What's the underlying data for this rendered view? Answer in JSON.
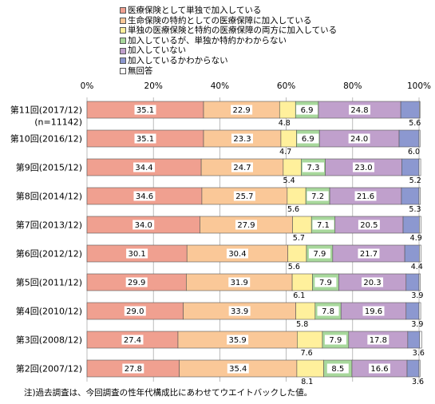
{
  "legend": {
    "items": [
      {
        "label": "医療保険として単独で加入している",
        "color": "#F0A090"
      },
      {
        "label": "生命保険の特約としての医療保障に加入している",
        "color": "#FAC898"
      },
      {
        "label": "単独の医療保険と特約の医療保障の両方に加入している",
        "color": "#FFF09C"
      },
      {
        "label": "加入しているが、単独か特約かわからない",
        "color": "#A8D89C"
      },
      {
        "label": "加入していない",
        "color": "#C0A0CC"
      },
      {
        "label": "加入しているかわからない",
        "color": "#8C98D0"
      },
      {
        "label": "無回答",
        "color": "#FFFFFF"
      }
    ]
  },
  "footnote": "注)過去調査は、今回調査の性年代構成比にあわせてウエイトバックした値。",
  "chart_data": {
    "type": "bar",
    "orientation": "horizontal",
    "stacked": true,
    "xlim": [
      0,
      100
    ],
    "x_ticks": [
      "0%",
      "20%",
      "40%",
      "60%",
      "80%",
      "100%"
    ],
    "categories": [
      "第11回(2017/12)",
      "第10回(2016/12)",
      "第9回(2015/12)",
      "第8回(2014/12)",
      "第7回(2013/12)",
      "第6回(2012/12)",
      "第5回(2011/12)",
      "第4回(2010/12)",
      "第3回(2008/12)",
      "第2回(2007/12)"
    ],
    "category_sublabels": [
      "(n=11142)",
      "",
      "",
      "",
      "",
      "",
      "",
      "",
      "",
      ""
    ],
    "series": [
      {
        "name": "医療保険として単独で加入している",
        "color": "#F0A090",
        "values": [
          35.1,
          35.1,
          34.4,
          34.6,
          34.0,
          30.1,
          29.9,
          29.0,
          27.4,
          27.8
        ],
        "labels": [
          "35.1",
          "35.1",
          "34.4",
          "34.6",
          "34.0",
          "30.1",
          "29.9",
          "29.0",
          "27.4",
          "27.8"
        ]
      },
      {
        "name": "生命保険の特約としての医療保障に加入している",
        "color": "#FAC898",
        "values": [
          22.9,
          23.3,
          24.7,
          25.7,
          27.9,
          30.4,
          31.9,
          33.9,
          35.9,
          35.4
        ],
        "labels": [
          "22.9",
          "23.3",
          "24.7",
          "25.7",
          "27.9",
          "30.4",
          "31.9",
          "33.9",
          "35.9",
          "35.4"
        ]
      },
      {
        "name": "単独の医療保険と特約の医療保障の両方に加入している",
        "color": "#FFF09C",
        "values": [
          4.8,
          4.7,
          5.4,
          5.6,
          5.7,
          5.6,
          6.1,
          5.8,
          7.6,
          8.1
        ],
        "labels": [
          "4.8",
          "4.7",
          "5.4",
          "5.6",
          "5.7",
          "5.6",
          "6.1",
          "5.8",
          "7.6",
          "8.1"
        ]
      },
      {
        "name": "加入しているが、単独か特約かわからない",
        "color": "#A8D89C",
        "values": [
          6.9,
          6.9,
          7.3,
          7.2,
          7.1,
          7.9,
          7.9,
          7.8,
          7.9,
          8.5
        ],
        "labels": [
          "6.9",
          "6.9",
          "7.3",
          "7.2",
          "7.1",
          "7.9",
          "7.9",
          "7.8",
          "7.9",
          "8.5"
        ]
      },
      {
        "name": "加入していない",
        "color": "#C0A0CC",
        "values": [
          24.8,
          24.0,
          23.0,
          21.6,
          20.5,
          21.7,
          20.3,
          19.6,
          17.8,
          16.6
        ],
        "labels": [
          "24.8",
          "24.0",
          "23.0",
          "21.6",
          "20.5",
          "21.7",
          "20.3",
          "19.6",
          "17.8",
          "16.6"
        ]
      },
      {
        "name": "加入しているかわからない",
        "color": "#8C98D0",
        "values": [
          5.6,
          6.0,
          5.2,
          5.3,
          4.9,
          4.4,
          3.9,
          3.9,
          3.6,
          3.6
        ],
        "labels": [
          "5.6",
          "6.0",
          "5.2",
          "5.3",
          "4.9",
          "4.4",
          "3.9",
          "3.9",
          "3.6",
          "3.6"
        ]
      },
      {
        "name": "無回答",
        "color": "#FFFFFF",
        "values": [
          0.2,
          0.3,
          0.5,
          0.4,
          0.5,
          0.5,
          0.4,
          0.5,
          0.6,
          0.3
        ],
        "labels": [
          "",
          "",
          "",
          "",
          "",
          "",
          "",
          "",
          "",
          ""
        ]
      }
    ]
  }
}
